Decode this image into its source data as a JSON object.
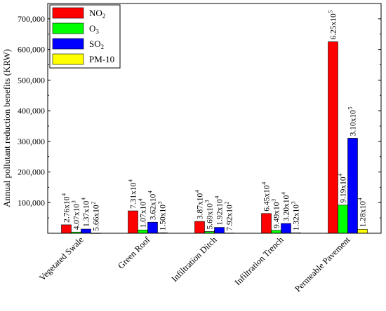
{
  "chart_data": {
    "type": "bar",
    "title": "",
    "xlabel": "",
    "ylabel": "Annual pollutant reduction benefits (KRW)",
    "ylim": [
      0,
      750000
    ],
    "yticks": [
      {
        "value": 100000,
        "label": "100,000"
      },
      {
        "value": 200000,
        "label": "200,000"
      },
      {
        "value": 300000,
        "label": "300,000"
      },
      {
        "value": 400000,
        "label": "400,000"
      },
      {
        "value": 500000,
        "label": "500,000"
      },
      {
        "value": 600000,
        "label": "600,000"
      },
      {
        "value": 700000,
        "label": "700,000"
      }
    ],
    "categories": [
      "Vegetated Swale",
      "Green Roof",
      "Infiltration Ditch",
      "Infiltration Trench",
      "Permeable Pavement"
    ],
    "legend_position": "top-left",
    "series": [
      {
        "name": "NO2",
        "name_base": "NO",
        "name_sub": "2",
        "color": "#ff0000",
        "values": [
          27600,
          73100,
          38700,
          64500,
          625000
        ],
        "labels": [
          {
            "mant": "2.76x10",
            "exp": "4"
          },
          {
            "mant": "7.31x10",
            "exp": "4"
          },
          {
            "mant": "3.87x10",
            "exp": "4"
          },
          {
            "mant": "6.45x10",
            "exp": "4"
          },
          {
            "mant": "6.25x10",
            "exp": "5"
          }
        ]
      },
      {
        "name": "O3",
        "name_base": "O",
        "name_sub": "3",
        "color": "#00ff00",
        "values": [
          4070,
          10700,
          5690,
          9490,
          91900
        ],
        "labels": [
          {
            "mant": "4.07x10",
            "exp": "3"
          },
          {
            "mant": "1.07x10",
            "exp": "4"
          },
          {
            "mant": "5.69x10",
            "exp": "3"
          },
          {
            "mant": "9.49x10",
            "exp": "3"
          },
          {
            "mant": "9.19x10",
            "exp": "4"
          }
        ]
      },
      {
        "name": "SO2",
        "name_base": "SO",
        "name_sub": "2",
        "color": "#0000ff",
        "values": [
          13700,
          36200,
          19200,
          32000,
          310000
        ],
        "labels": [
          {
            "mant": "1.37x10",
            "exp": "4"
          },
          {
            "mant": "3.62x10",
            "exp": "4"
          },
          {
            "mant": "1.92x10",
            "exp": "4"
          },
          {
            "mant": "3.20x10",
            "exp": "4"
          },
          {
            "mant": "3.10x10",
            "exp": "5"
          }
        ]
      },
      {
        "name": "PM-10",
        "name_base": "PM-10",
        "name_sub": "",
        "color": "#ffff00",
        "values": [
          566,
          1500,
          792,
          1320,
          12800
        ],
        "labels": [
          {
            "mant": "5.66x10",
            "exp": "2"
          },
          {
            "mant": "1.50x10",
            "exp": "3"
          },
          {
            "mant": "7.92x10",
            "exp": "2"
          },
          {
            "mant": "1.32x10",
            "exp": "3"
          },
          {
            "mant": "1.28x10",
            "exp": "4"
          }
        ]
      }
    ]
  }
}
